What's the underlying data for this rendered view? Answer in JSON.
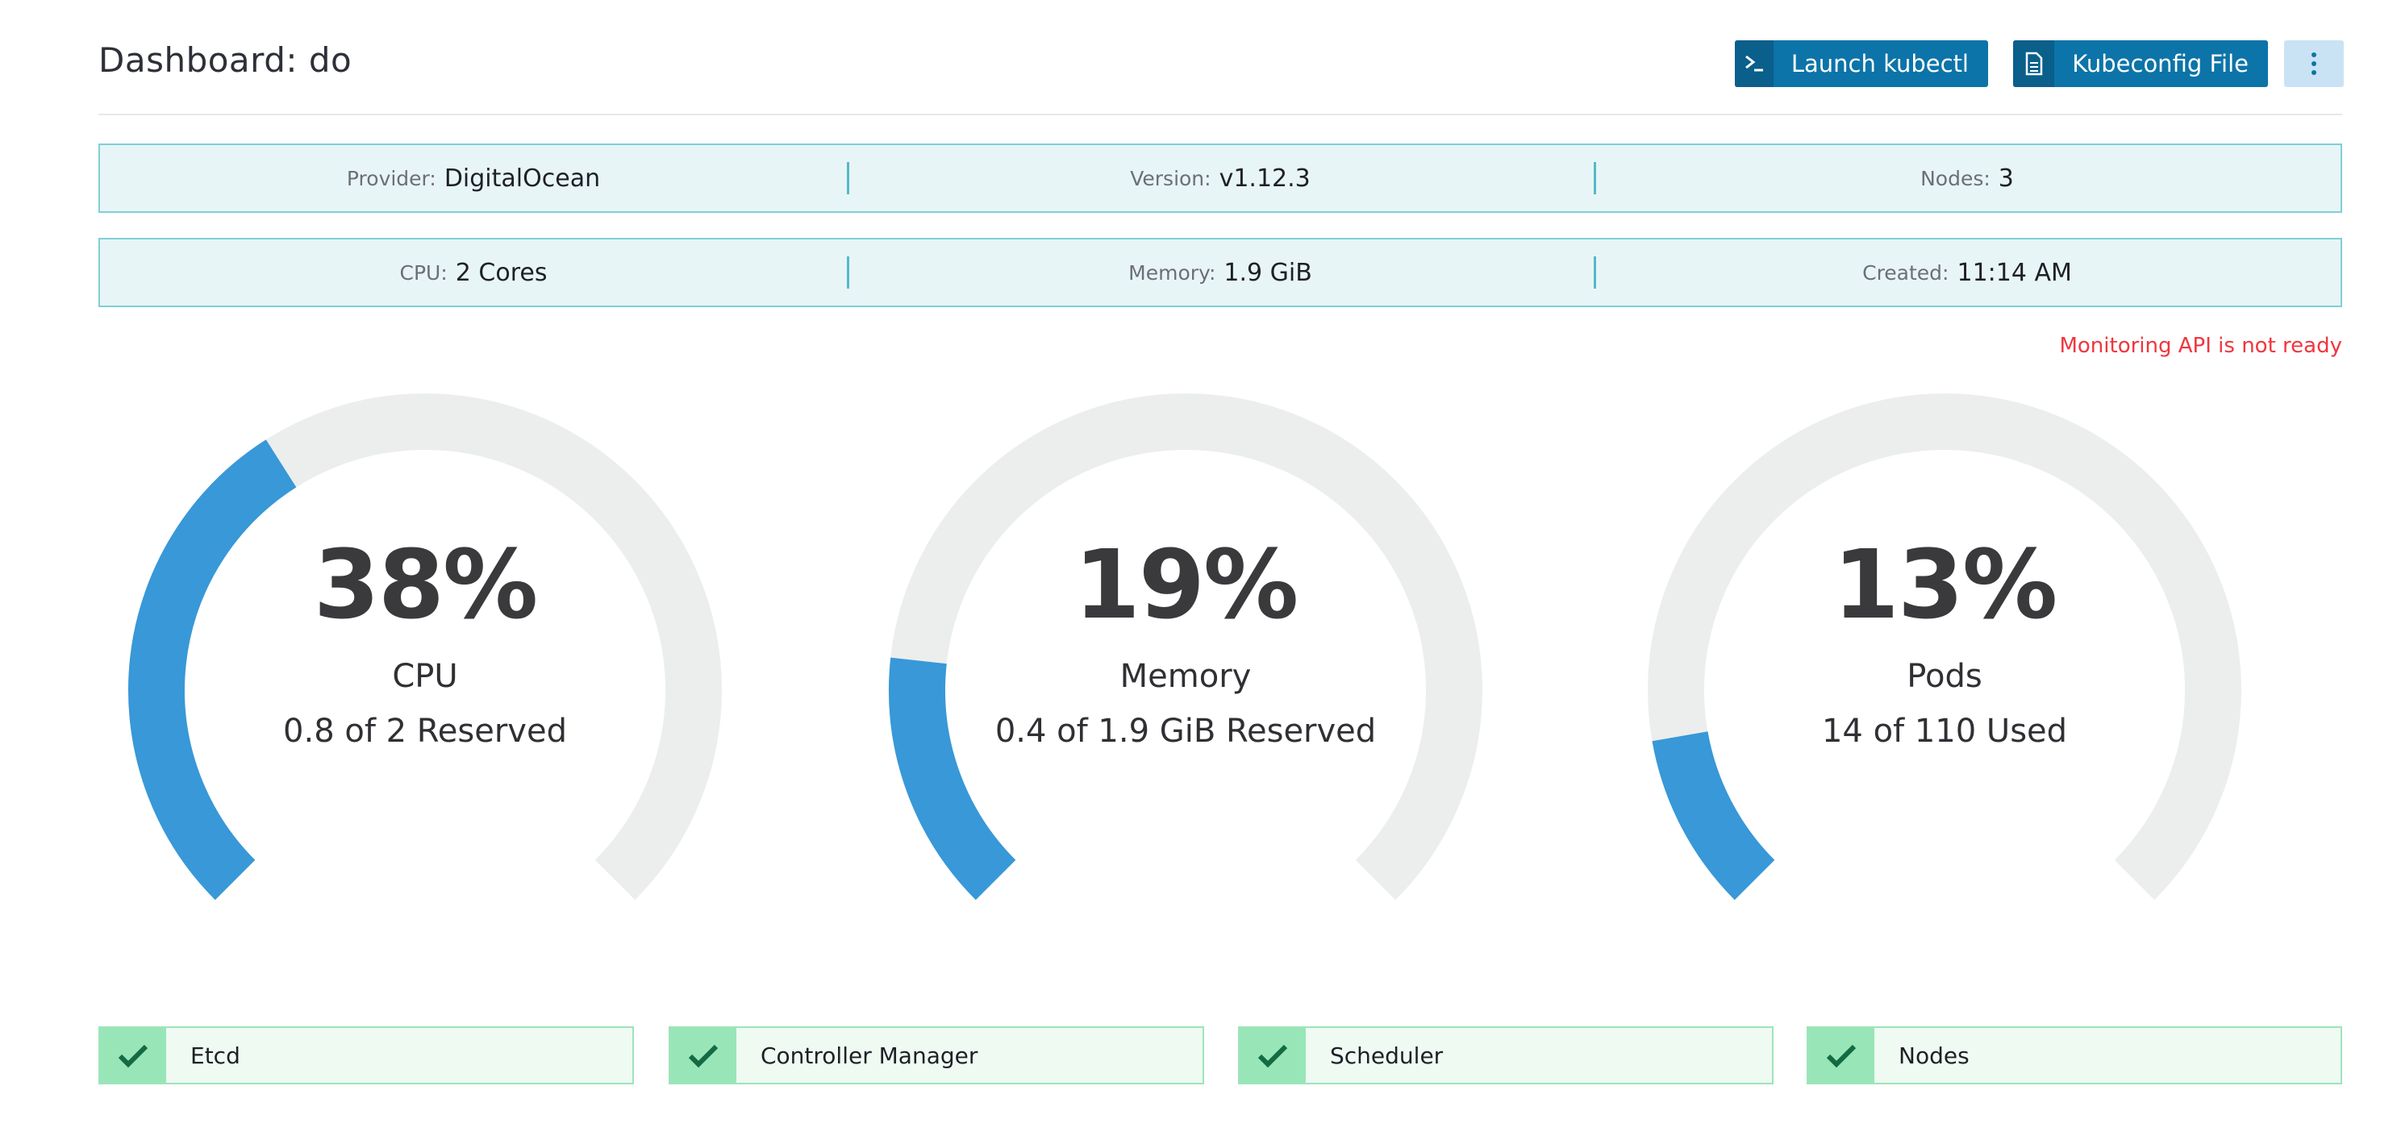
{
  "header": {
    "title": "Dashboard: do",
    "kubectl_label": "Launch kubectl",
    "kubectl_icon": "terminal-icon",
    "kubeconfig_label": "Kubeconfig File",
    "kubeconfig_icon": "file-icon",
    "more_icon": "kebab-menu-icon"
  },
  "info": {
    "row1": [
      {
        "label": "Provider:",
        "value": "DigitalOcean"
      },
      {
        "label": "Version:",
        "value": "v1.12.3"
      },
      {
        "label": "Nodes:",
        "value": "3"
      }
    ],
    "row2": [
      {
        "label": "CPU:",
        "value": "2 Cores"
      },
      {
        "label": "Memory:",
        "value": "1.9 GiB"
      },
      {
        "label": "Created:",
        "value": "11:14 AM"
      }
    ]
  },
  "warning": "Monitoring API is not ready",
  "gauges": [
    {
      "percent": "38%",
      "fraction": 0.38,
      "title": "CPU",
      "detail": "0.8 of 2 Reserved"
    },
    {
      "percent": "19%",
      "fraction": 0.19,
      "title": "Memory",
      "detail": "0.4 of 1.9 GiB Reserved"
    },
    {
      "percent": "13%",
      "fraction": 0.13,
      "title": "Pods",
      "detail": "14 of 110 Used"
    }
  ],
  "components": [
    {
      "label": "Etcd",
      "icon": "check-icon"
    },
    {
      "label": "Controller Manager",
      "icon": "check-icon"
    },
    {
      "label": "Scheduler",
      "icon": "check-icon"
    },
    {
      "label": "Nodes",
      "icon": "check-icon"
    }
  ],
  "colors": {
    "accent": "#0c74a8",
    "gauge_fill": "#3898d8",
    "gauge_track": "#eceeee",
    "ok": "#98e6b8",
    "error": "#f0363e"
  }
}
